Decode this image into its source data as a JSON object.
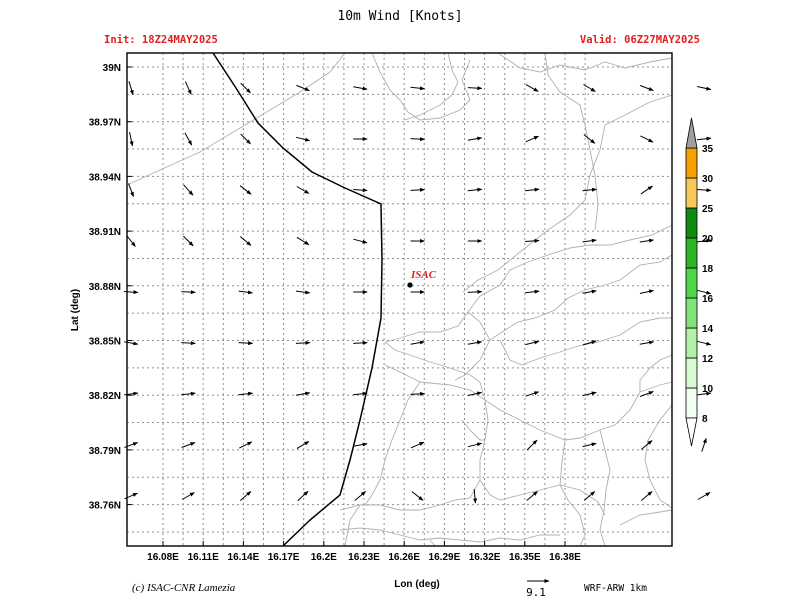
{
  "header": {
    "title": "10m Wind [Knots]",
    "init": "Init: 18Z24MAY2025",
    "valid": "Valid: 06Z27MAY2025"
  },
  "axes": {
    "xlabel": "Lon (deg)",
    "ylabel": "Lat (deg)",
    "xticks": [
      "16.08E",
      "16.11E",
      "16.14E",
      "16.17E",
      "16.2E",
      "16.23E",
      "16.26E",
      "16.29E",
      "16.32E",
      "16.35E",
      "16.38E"
    ],
    "yticks": [
      "39N",
      "38.97N",
      "38.94N",
      "38.91N",
      "38.88N",
      "38.85N",
      "38.82N",
      "38.79N",
      "38.76N"
    ]
  },
  "station": {
    "label": "ISAC"
  },
  "colorbar": {
    "levels": [
      "8",
      "10",
      "12",
      "14",
      "16",
      "18",
      "20",
      "25",
      "30",
      "35"
    ],
    "colors": [
      "#f0fff0",
      "#d8fad2",
      "#b4f0a8",
      "#82e27a",
      "#4fd44a",
      "#2db52a",
      "#0f8c0f",
      "#f7c85a",
      "#f5a000",
      "#f06a00"
    ],
    "tip_color": "#a0a0a0"
  },
  "footer": {
    "credit": "(c) ISAC-CNR Lamezia",
    "ref_vector": "9.1",
    "model": "WRF-ARW  1km"
  },
  "colors": {
    "arrow": "#000000",
    "coast": "#000000",
    "border": "#b0b0b0",
    "grid": "#909090",
    "station_label": "#e02020",
    "header_red": "#e02020"
  },
  "wind_vectors": [
    {
      "dx": 0.3,
      "dy": 1
    },
    {
      "dx": 0.45,
      "dy": 1
    },
    {
      "dx": 0.6,
      "dy": 0.6
    },
    {
      "dx": 0.75,
      "dy": 0.3
    },
    {
      "dx": 0.8,
      "dy": 0.15
    },
    {
      "dx": 0.85,
      "dy": 0.1
    },
    {
      "dx": 0.9,
      "dy": 0.05
    },
    {
      "dx": 0.8,
      "dy": 0.45
    },
    {
      "dx": 0.85,
      "dy": 0.5
    },
    {
      "dx": 0.8,
      "dy": 0.3
    },
    {
      "dx": 0.9,
      "dy": 0.2
    },
    {
      "dx": 0.2,
      "dy": 1
    },
    {
      "dx": 0.5,
      "dy": 0.9
    },
    {
      "dx": 0.6,
      "dy": 0.6
    },
    {
      "dx": 0.8,
      "dy": 0.2
    },
    {
      "dx": 0.85,
      "dy": 0
    },
    {
      "dx": 0.85,
      "dy": 0.05
    },
    {
      "dx": 0.9,
      "dy": -0.15
    },
    {
      "dx": 0.9,
      "dy": -0.4
    },
    {
      "dx": 0.5,
      "dy": 0.4
    },
    {
      "dx": 0.6,
      "dy": 0.3
    },
    {
      "dx": 0.9,
      "dy": -0.1
    },
    {
      "dx": 0.3,
      "dy": 0.8
    },
    {
      "dx": 0.55,
      "dy": 0.6
    },
    {
      "dx": 0.65,
      "dy": 0.5
    },
    {
      "dx": 0.7,
      "dy": 0.4
    },
    {
      "dx": 0.75,
      "dy": 0.05
    },
    {
      "dx": 0.9,
      "dy": -0.05
    },
    {
      "dx": 0.95,
      "dy": -0.1
    },
    {
      "dx": 0.9,
      "dy": -0.1
    },
    {
      "dx": 0.95,
      "dy": -0.1
    },
    {
      "dx": 0.6,
      "dy": -0.4
    },
    {
      "dx": 0.7,
      "dy": 0.05
    },
    {
      "dx": 0.4,
      "dy": 0.5
    },
    {
      "dx": 0.5,
      "dy": 0.5
    },
    {
      "dx": 0.6,
      "dy": 0.5
    },
    {
      "dx": 0.65,
      "dy": 0.4
    },
    {
      "dx": 0.75,
      "dy": 0.2
    },
    {
      "dx": 0.8,
      "dy": 0
    },
    {
      "dx": 0.8,
      "dy": 0
    },
    {
      "dx": 0.75,
      "dy": -0.05
    },
    {
      "dx": 0.75,
      "dy": -0.1
    },
    {
      "dx": 0.7,
      "dy": -0.1
    },
    {
      "dx": 0.75,
      "dy": -0.1
    },
    {
      "dx": 0.7,
      "dy": 0.05
    },
    {
      "dx": 0.85,
      "dy": 0.05
    },
    {
      "dx": 0.8,
      "dy": 0.1
    },
    {
      "dx": 0.8,
      "dy": 0.1
    },
    {
      "dx": 0.8,
      "dy": 0
    },
    {
      "dx": 0.85,
      "dy": 0
    },
    {
      "dx": 0.85,
      "dy": -0.05
    },
    {
      "dx": 0.85,
      "dy": -0.1
    },
    {
      "dx": 0.9,
      "dy": -0.15
    },
    {
      "dx": 0.9,
      "dy": -0.2
    },
    {
      "dx": 0.8,
      "dy": 0.2
    },
    {
      "dx": 0.6,
      "dy": 0.1
    },
    {
      "dx": 0.8,
      "dy": 0.05
    },
    {
      "dx": 0.9,
      "dy": 0.05
    },
    {
      "dx": 0.9,
      "dy": -0.05
    },
    {
      "dx": 0.9,
      "dy": -0.05
    },
    {
      "dx": 0.9,
      "dy": -0.15
    },
    {
      "dx": 0.85,
      "dy": -0.15
    },
    {
      "dx": 0.85,
      "dy": -0.2
    },
    {
      "dx": 0.85,
      "dy": -0.25
    },
    {
      "dx": 0.85,
      "dy": -0.15
    },
    {
      "dx": 0.8,
      "dy": 0.2
    },
    {
      "dx": 0.8,
      "dy": -0.1
    },
    {
      "dx": 0.85,
      "dy": -0.1
    },
    {
      "dx": 0.9,
      "dy": -0.1
    },
    {
      "dx": 0.9,
      "dy": -0.15
    },
    {
      "dx": 0.85,
      "dy": -0.1
    },
    {
      "dx": 0.85,
      "dy": -0.05
    },
    {
      "dx": 0.9,
      "dy": -0.2
    },
    {
      "dx": 0.9,
      "dy": -0.3
    },
    {
      "dx": 0.85,
      "dy": -0.2
    },
    {
      "dx": 0.8,
      "dy": -0.3
    },
    {
      "dx": 0.8,
      "dy": -0.1
    },
    {
      "dx": 0.8,
      "dy": -0.3
    },
    {
      "dx": 0.8,
      "dy": -0.3
    },
    {
      "dx": 0.8,
      "dy": -0.4
    },
    {
      "dx": 0.75,
      "dy": -0.45
    },
    {
      "dx": 0.8,
      "dy": -0.15
    },
    {
      "dx": 0.7,
      "dy": -0.3
    },
    {
      "dx": 0.8,
      "dy": -0.2
    },
    {
      "dx": 0.6,
      "dy": -0.6
    },
    {
      "dx": 0.85,
      "dy": -0.2
    },
    {
      "dx": 0.6,
      "dy": -0.5
    },
    {
      "dx": 0.3,
      "dy": -0.9
    },
    {
      "dx": 0.7,
      "dy": -0.3
    },
    {
      "dx": 0.7,
      "dy": -0.4
    },
    {
      "dx": 0.7,
      "dy": -0.6
    },
    {
      "dx": 0.6,
      "dy": -0.55
    },
    {
      "dx": 0.6,
      "dy": -0.5
    },
    {
      "dx": 0.5,
      "dy": 0.4
    },
    {
      "dx": 0.1,
      "dy": 1
    },
    {
      "dx": 0.6,
      "dy": -0.5
    },
    {
      "dx": 0.6,
      "dy": -0.5
    },
    {
      "dx": 0.6,
      "dy": -0.5
    },
    {
      "dx": 0.7,
      "dy": -0.4
    }
  ]
}
